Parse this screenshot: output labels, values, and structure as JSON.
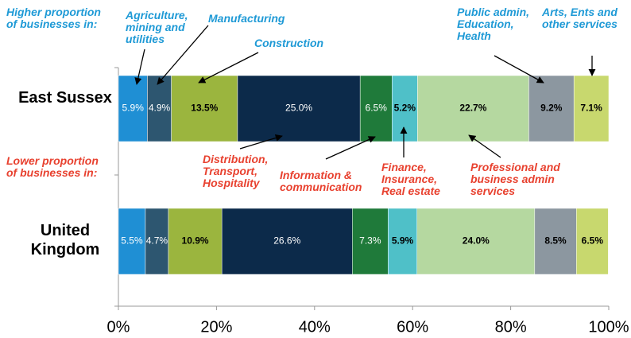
{
  "chart_data": {
    "type": "stacked_barh",
    "higher_note": "Higher proportion of businesses in:",
    "lower_note": "Lower proportion of businesses in:",
    "categories": [
      "East Sussex",
      "United Kingdom"
    ],
    "series": [
      {
        "name": "Agriculture, mining and utilities",
        "color": "#1f8fd4",
        "values": [
          5.9,
          5.5
        ],
        "value_labels": [
          "5.9%",
          "5.5%"
        ]
      },
      {
        "name": "Manufacturing",
        "color": "#2d5670",
        "values": [
          4.9,
          4.7
        ],
        "value_labels": [
          "4.9%",
          "4.7%"
        ]
      },
      {
        "name": "Construction",
        "color": "#9bb53e",
        "values": [
          13.5,
          10.9
        ],
        "value_labels": [
          "13.5%",
          "10.9%"
        ]
      },
      {
        "name": "Distribution, Transport, Hospitality",
        "color": "#0c2a4a",
        "values": [
          25.0,
          26.6
        ],
        "value_labels": [
          "25.0%",
          "26.6%"
        ]
      },
      {
        "name": "Information & communication",
        "color": "#1f7a3a",
        "values": [
          6.5,
          7.3
        ],
        "value_labels": [
          "6.5%",
          "7.3%"
        ]
      },
      {
        "name": "Finance, Insurance, Real estate",
        "color": "#4fc0c8",
        "values": [
          5.2,
          5.9
        ],
        "value_labels": [
          "5.2%",
          "5.9%"
        ]
      },
      {
        "name": "Professional and business admin services",
        "color": "#b5d8a0",
        "values": [
          22.7,
          24.0
        ],
        "value_labels": [
          "22.7%",
          "24.0%"
        ]
      },
      {
        "name": "Public admin, Education, Health",
        "color": "#8c97a0",
        "values": [
          9.2,
          8.5
        ],
        "value_labels": [
          "9.2%",
          "8.5%"
        ]
      },
      {
        "name": "Arts, Ents and other services",
        "color": "#c8d86e",
        "values": [
          7.1,
          6.5
        ],
        "value_labels": [
          "7.1%",
          "6.5%"
        ]
      }
    ],
    "xlim": [
      0,
      100
    ],
    "xticks": [
      {
        "value": 0,
        "label": "0%"
      },
      {
        "value": 20,
        "label": "20%"
      },
      {
        "value": 40,
        "label": "40%"
      },
      {
        "value": 60,
        "label": "60%"
      },
      {
        "value": 80,
        "label": "80%"
      },
      {
        "value": 100,
        "label": "100%"
      }
    ],
    "higher_color": "#1f9ad6",
    "lower_color": "#e8412f"
  }
}
